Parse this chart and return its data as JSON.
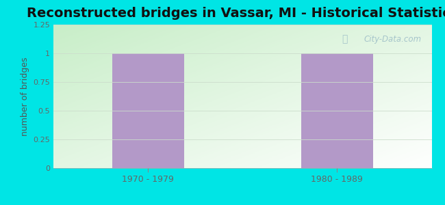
{
  "title": "Reconstructed bridges in Vassar, MI - Historical Statistics",
  "categories": [
    "1970 - 1979",
    "1980 - 1989"
  ],
  "values": [
    1,
    1
  ],
  "bar_color": "#b399c8",
  "ylabel": "number of bridges",
  "ylim": [
    0,
    1.25
  ],
  "yticks": [
    0,
    0.25,
    0.5,
    0.75,
    1.0,
    1.25
  ],
  "ytick_labels": [
    "0",
    "0.25",
    "0.5",
    "0.75",
    "1",
    "1.25"
  ],
  "background_outer": "#00e5e5",
  "background_plot_left": "#c8eec8",
  "background_plot_right": "#ffffff",
  "title_fontsize": 14,
  "title_color": "#111111",
  "axis_label_color": "#555555",
  "tick_color": "#666666",
  "watermark": "City-Data.com",
  "bar_width": 0.38,
  "grid_color": "#ccddcc",
  "figsize": [
    6.5,
    3.0
  ],
  "dpi": 100
}
